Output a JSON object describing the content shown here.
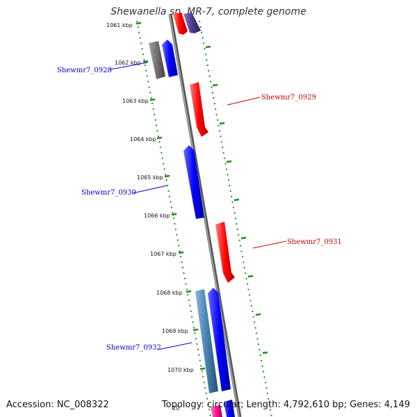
{
  "title": "Shewanella sp. MR-7, complete genome",
  "footer": {
    "accession": "Accession: NC_008322",
    "summary": "Topology: circular; Length: 4,792,610 bp; Genes: 4,149"
  },
  "colors": {
    "backbone": "#808080",
    "forward_gene": "#ff0000",
    "reverse_gene": "#0000ff",
    "gray_gene": "#707070",
    "steel_gene": "#4682b4",
    "purple_gene": "#4b3c8c",
    "pink_gene": "#ff1493",
    "tick": "#1e8c1e",
    "label_blue": "#0000cc",
    "label_red": "#cc0000"
  },
  "ticks": [
    "1061 kbp",
    "1062 kbp",
    "1063 kbp",
    "1064 kbp",
    "1065 kbp",
    "1066 kbp",
    "1067 kbp",
    "1068 kbp",
    "1069 kbp",
    "1070 kbp",
    "10"
  ],
  "genes": [
    {
      "name": "Shewmr7_0928",
      "strand": "reverse",
      "color": "#0000ff",
      "labeled": true
    },
    {
      "name": "Shewmr7_0929",
      "strand": "forward",
      "color": "#ff0000",
      "labeled": true
    },
    {
      "name": "Shewmr7_0930",
      "strand": "reverse",
      "color": "#0000ff",
      "labeled": true
    },
    {
      "name": "Shewmr7_0931",
      "strand": "forward",
      "color": "#ff0000",
      "labeled": true
    },
    {
      "name": "Shewmr7_0932",
      "strand": "reverse",
      "color": "#0000ff",
      "labeled": true
    }
  ]
}
